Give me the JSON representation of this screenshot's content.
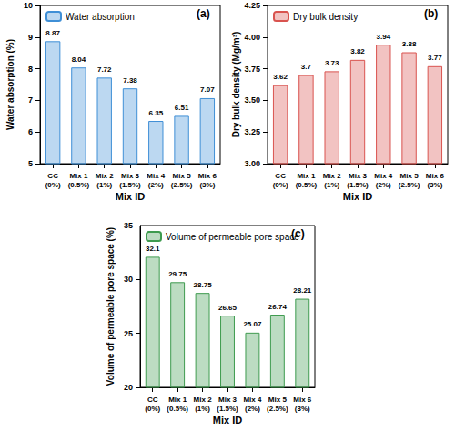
{
  "chart_data": [
    {
      "type": "bar",
      "title": "(a)",
      "x_label": "Mix ID",
      "y_label": "Water absorption (%)",
      "categories": [
        "CC\n(0%)",
        "Mix 1\n(0.5%)",
        "Mix 2\n(1%)",
        "Mix 3\n(1.5%)",
        "Mix 4\n(2%)",
        "Mix 5\n(2.5%)",
        "Mix 6\n(3%)"
      ],
      "series": [
        {
          "name": "Water absorption",
          "color": "#3f8fd6",
          "values": [
            8.87,
            8.04,
            7.72,
            7.38,
            6.35,
            6.51,
            7.07
          ]
        }
      ],
      "ylim": [
        5,
        10
      ],
      "yticks": [
        5,
        6,
        7,
        8,
        9,
        10
      ],
      "data_labels": true,
      "grid": false,
      "legend": "upper left"
    },
    {
      "type": "bar",
      "title": "(b)",
      "x_label": "Mix ID",
      "y_label": "Dry bulk density (Mg/m³)",
      "categories": [
        "CC\n(0%)",
        "Mix 1\n(0.5%)",
        "Mix 2\n(1%)",
        "Mix 3\n(1.5%)",
        "Mix 4\n(2%)",
        "Mix 5\n(2.5%)",
        "Mix 6\n(3%)"
      ],
      "series": [
        {
          "name": "Dry bulk density",
          "color": "#d9534f",
          "values": [
            3.62,
            3.7,
            3.73,
            3.82,
            3.94,
            3.88,
            3.77
          ]
        }
      ],
      "ylim": [
        3,
        4.25
      ],
      "yticks": [
        {
          "value": 3,
          "label": "3.00"
        },
        {
          "value": 3.25,
          "label": "3.25"
        },
        {
          "value": 3.5,
          "label": "3.50"
        },
        {
          "value": 3.75,
          "label": "3.75"
        },
        {
          "value": 4,
          "label": "4.00"
        },
        {
          "value": 4.25,
          "label": "4.25"
        }
      ],
      "data_labels": true,
      "grid": false,
      "legend": "upper left"
    },
    {
      "type": "bar",
      "title": "(c)",
      "x_label": "Mix ID",
      "y_label": "Volume of permeable pore space (%)",
      "categories": [
        "CC\n(0%)",
        "Mix 1\n(0.5%)",
        "Mix 2\n(1%)",
        "Mix 3\n(1.5%)",
        "Mix 4\n(2%)",
        "Mix 5\n(2.5%)",
        "Mix 6\n(3%)"
      ],
      "series": [
        {
          "name": "Volume of permeable pore space",
          "color": "#3e9b4f",
          "values": [
            32.1,
            29.75,
            28.75,
            26.65,
            25.07,
            26.74,
            28.21
          ]
        }
      ],
      "ylim": [
        20,
        35
      ],
      "yticks": [
        20,
        25,
        30,
        35
      ],
      "data_labels": true,
      "grid": false,
      "legend": "upper left"
    }
  ]
}
